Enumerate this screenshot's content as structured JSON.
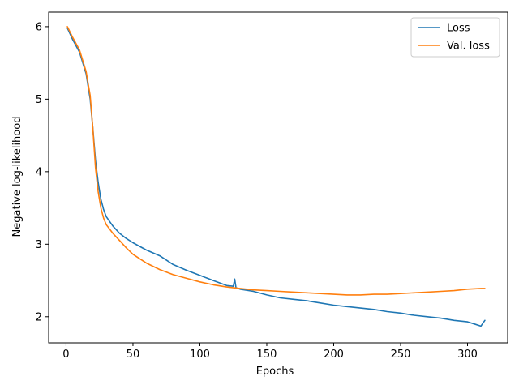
{
  "chart_data": {
    "type": "line",
    "title": "",
    "xlabel": "Epochs",
    "ylabel": "Negative log-likelihood",
    "xlim": [
      -13,
      330
    ],
    "ylim": [
      1.64,
      6.2
    ],
    "xticks": [
      0,
      50,
      100,
      150,
      200,
      250,
      300
    ],
    "yticks": [
      2,
      3,
      4,
      5,
      6
    ],
    "grid": false,
    "legend_position": "top-right",
    "series": [
      {
        "name": "Loss",
        "color": "#1f77b4",
        "points": [
          [
            1,
            5.98
          ],
          [
            5,
            5.82
          ],
          [
            10,
            5.65
          ],
          [
            15,
            5.35
          ],
          [
            18,
            5.0
          ],
          [
            20,
            4.6
          ],
          [
            22,
            4.15
          ],
          [
            24,
            3.85
          ],
          [
            26,
            3.62
          ],
          [
            28,
            3.48
          ],
          [
            30,
            3.38
          ],
          [
            35,
            3.25
          ],
          [
            40,
            3.15
          ],
          [
            45,
            3.08
          ],
          [
            50,
            3.02
          ],
          [
            55,
            2.97
          ],
          [
            60,
            2.92
          ],
          [
            70,
            2.84
          ],
          [
            80,
            2.72
          ],
          [
            90,
            2.64
          ],
          [
            100,
            2.57
          ],
          [
            110,
            2.5
          ],
          [
            120,
            2.43
          ],
          [
            125,
            2.42
          ],
          [
            126,
            2.52
          ],
          [
            127,
            2.4
          ],
          [
            130,
            2.38
          ],
          [
            140,
            2.35
          ],
          [
            150,
            2.3
          ],
          [
            160,
            2.26
          ],
          [
            170,
            2.24
          ],
          [
            180,
            2.22
          ],
          [
            190,
            2.19
          ],
          [
            200,
            2.16
          ],
          [
            210,
            2.14
          ],
          [
            220,
            2.12
          ],
          [
            230,
            2.1
          ],
          [
            240,
            2.07
          ],
          [
            250,
            2.05
          ],
          [
            260,
            2.02
          ],
          [
            270,
            2.0
          ],
          [
            280,
            1.98
          ],
          [
            290,
            1.95
          ],
          [
            300,
            1.93
          ],
          [
            305,
            1.9
          ],
          [
            310,
            1.87
          ],
          [
            313,
            1.95
          ]
        ]
      },
      {
        "name": "Val. loss",
        "color": "#ff7f0e",
        "points": [
          [
            1,
            6.0
          ],
          [
            5,
            5.85
          ],
          [
            10,
            5.68
          ],
          [
            15,
            5.38
          ],
          [
            18,
            5.05
          ],
          [
            20,
            4.6
          ],
          [
            22,
            4.05
          ],
          [
            24,
            3.72
          ],
          [
            26,
            3.5
          ],
          [
            28,
            3.36
          ],
          [
            30,
            3.27
          ],
          [
            35,
            3.15
          ],
          [
            40,
            3.05
          ],
          [
            45,
            2.95
          ],
          [
            50,
            2.86
          ],
          [
            55,
            2.8
          ],
          [
            60,
            2.74
          ],
          [
            70,
            2.65
          ],
          [
            80,
            2.58
          ],
          [
            90,
            2.53
          ],
          [
            100,
            2.48
          ],
          [
            110,
            2.44
          ],
          [
            120,
            2.41
          ],
          [
            130,
            2.39
          ],
          [
            140,
            2.37
          ],
          [
            150,
            2.36
          ],
          [
            160,
            2.35
          ],
          [
            170,
            2.34
          ],
          [
            180,
            2.33
          ],
          [
            190,
            2.32
          ],
          [
            200,
            2.31
          ],
          [
            210,
            2.3
          ],
          [
            220,
            2.3
          ],
          [
            230,
            2.31
          ],
          [
            240,
            2.31
          ],
          [
            250,
            2.32
          ],
          [
            260,
            2.33
          ],
          [
            270,
            2.34
          ],
          [
            280,
            2.35
          ],
          [
            290,
            2.36
          ],
          [
            300,
            2.38
          ],
          [
            310,
            2.39
          ],
          [
            313,
            2.39
          ]
        ]
      }
    ]
  }
}
